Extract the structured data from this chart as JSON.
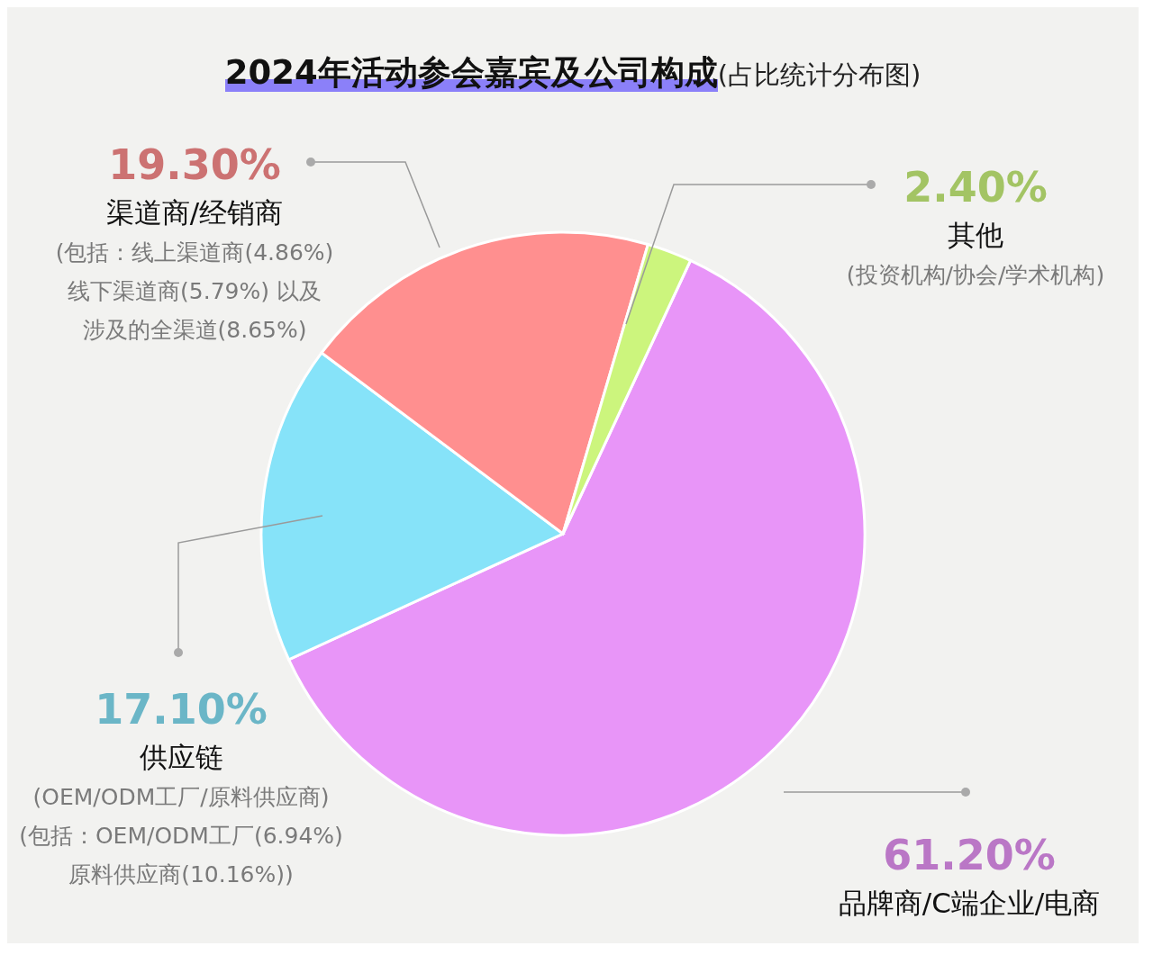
{
  "chart_data": {
    "type": "pie",
    "title": "2024年活动参会嘉宾及公司构成",
    "subtitle": "(占比统计分布图)",
    "categories": [
      "品牌商/C端企业/电商",
      "供应链",
      "渠道商/经销商",
      "其他"
    ],
    "values": [
      61.2,
      17.1,
      19.3,
      2.4
    ],
    "value_labels": [
      "61.20%",
      "17.10%",
      "19.30%",
      "2.40%"
    ],
    "colors": [
      "#e895f8",
      "#86e3f9",
      "#ff8f8f",
      "#ccf57d"
    ],
    "annotations": [
      "(投资机构/协会/学术机构)",
      "(包括：线上渠道商(4.86%)",
      "线下渠道商(5.79%) 以及",
      "涉及的全渠道(8.65%)",
      "(OEM/ODM工厂/原料供应商)",
      "(包括：OEM/ODM工厂(6.94%)",
      "原料供应商(10.16%))"
    ]
  }
}
